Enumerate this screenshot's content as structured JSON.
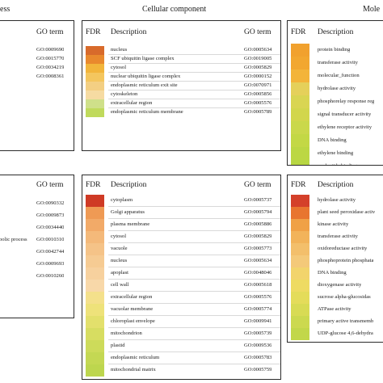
{
  "headers": {
    "left": "ess",
    "middle": "Cellular component",
    "right": "Mole"
  },
  "col_labels": {
    "fdr": "FDR",
    "description": "Description",
    "go_term": "GO term"
  },
  "panels": {
    "top_left": {
      "rows": [
        {
          "go": "GO:0009690"
        },
        {
          "go": "GO:0015770"
        },
        {
          "go": "GO:0034219"
        },
        {
          "go": "GO:0008361"
        }
      ]
    },
    "top_middle": {
      "rows": [
        {
          "desc": "nucleus",
          "go": "GO:0005634",
          "color": "#d86a2b"
        },
        {
          "desc": "SCF ubiquitin ligase complex",
          "go": "GO:0019005",
          "color": "#e9892d"
        },
        {
          "desc": "cytosol",
          "go": "GO:0005829",
          "color": "#f2b53b"
        },
        {
          "desc": "nuclear ubiquitin ligase complex",
          "go": "GO:0000152",
          "color": "#f4c65e"
        },
        {
          "desc": "endoplasmic reticulum exit site",
          "go": "GO:0070971",
          "color": "#f3cf83"
        },
        {
          "desc": "cytoskeleton",
          "go": "GO:0005856",
          "color": "#f6dba2"
        },
        {
          "desc": "extracellular region",
          "go": "GO:0005576",
          "color": "#cfe08a"
        },
        {
          "desc": "endoplasmic reticulum membrane",
          "go": "GO:0005789",
          "color": "#c0da5c"
        }
      ]
    },
    "top_right": {
      "rows": [
        {
          "desc": "protein binding",
          "color": "#f1a12e"
        },
        {
          "desc": "transferase activity",
          "color": "#f2a730"
        },
        {
          "desc": "molecular_function",
          "color": "#f3b43a"
        },
        {
          "desc": "hydrolase activity",
          "color": "#e5d05a"
        },
        {
          "desc": "phosphorelay response reg",
          "color": "#d9d552"
        },
        {
          "desc": "signal transducer activity",
          "color": "#d2d64c"
        },
        {
          "desc": "ethylene receptor activity",
          "color": "#cad84b"
        },
        {
          "desc": "DNA binding",
          "color": "#c3d845"
        },
        {
          "desc": "ethylene binding",
          "color": "#bcd743"
        },
        {
          "desc": "nucleotide binding",
          "color": "#b7d642"
        }
      ]
    },
    "bottom_left": {
      "partial_label": "bolic process",
      "rows": [
        {
          "go": "GO:0090332"
        },
        {
          "go": "GO:0009873"
        },
        {
          "go": "GO:0034440"
        },
        {
          "go": "GO:0010310"
        },
        {
          "go": "GO:0042744"
        },
        {
          "go": "GO:0009693"
        },
        {
          "go": "GO:0010260"
        }
      ]
    },
    "bottom_middle": {
      "rows": [
        {
          "desc": "cytoplasm",
          "go": "GO:0005737",
          "color": "#cf3a25"
        },
        {
          "desc": "Golgi apparatus",
          "go": "GO:0005794",
          "color": "#ef9a54"
        },
        {
          "desc": "plasma membrane",
          "go": "GO:0005886",
          "color": "#f2aa68"
        },
        {
          "desc": "cytosol",
          "go": "GO:0005829",
          "color": "#f4b97a"
        },
        {
          "desc": "vacuole",
          "go": "GO:0005773",
          "color": "#f5c388"
        },
        {
          "desc": "nucleus",
          "go": "GO:0005634",
          "color": "#f6cb93"
        },
        {
          "desc": "apoplast",
          "go": "GO:0048046",
          "color": "#f7d19e"
        },
        {
          "desc": "cell wall",
          "go": "GO:0005618",
          "color": "#f8d8a9"
        },
        {
          "desc": "extracellular region",
          "go": "GO:0005576",
          "color": "#f4e08b"
        },
        {
          "desc": "vacuolar membrane",
          "go": "GO:0005774",
          "color": "#eee27a"
        },
        {
          "desc": "chloroplast envelope",
          "go": "GO:0009941",
          "color": "#e3e06c"
        },
        {
          "desc": "mitochondrion",
          "go": "GO:0005739",
          "color": "#d7dd61"
        },
        {
          "desc": "plastid",
          "go": "GO:0009536",
          "color": "#cddb5a"
        },
        {
          "desc": "endoplasmic reticulum",
          "go": "GO:0005783",
          "color": "#c4d853"
        },
        {
          "desc": "mitochondrial matrix",
          "go": "GO:0005759",
          "color": "#bdd64e"
        }
      ]
    },
    "bottom_right": {
      "rows": [
        {
          "desc": "hydrolase activity",
          "color": "#d4402a"
        },
        {
          "desc": "plant seed peroxidase activ",
          "color": "#e8752f"
        },
        {
          "desc": "kinase activity",
          "color": "#f0a146"
        },
        {
          "desc": "transferase activity",
          "color": "#f2b35a"
        },
        {
          "desc": "oxidoreductase activity",
          "color": "#f3bf6b"
        },
        {
          "desc": "phosphoprotein phosphata",
          "color": "#f4c979"
        },
        {
          "desc": "DNA binding",
          "color": "#f2d46c"
        },
        {
          "desc": "dioxygenase activity",
          "color": "#eedb62"
        },
        {
          "desc": "sucrose alpha-glucosidas",
          "color": "#e4dc5a"
        },
        {
          "desc": "ATPase activity",
          "color": "#d8db54"
        },
        {
          "desc": "primary active transmemb",
          "color": "#ccd94f"
        },
        {
          "desc": "UDP-glucose 4,6-dehydra",
          "color": "#c2d74a"
        }
      ]
    }
  }
}
